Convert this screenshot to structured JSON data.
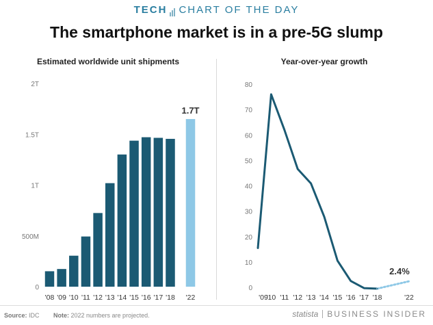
{
  "header": {
    "tech": "TECH",
    "kicker": "CHART OF THE DAY",
    "headline": "The smartphone market is in a pre-5G slump"
  },
  "footer": {
    "source_label": "Source:",
    "source_value": "IDC",
    "note_label": "Note:",
    "note_value": "2022 numbers are projected.",
    "logo_statista": "statista",
    "logo_bi": "BUSINESS INSIDER"
  },
  "colors": {
    "bar": "#1b5a73",
    "projected": "#8ec8e6",
    "line": "#1b5a73",
    "brand": "#2a7ea0"
  },
  "chart_data": [
    {
      "type": "bar",
      "title": "Estimated worldwide unit shipments",
      "categories": [
        "'08",
        "'09",
        "'10",
        "'11",
        "'12",
        "'13",
        "'14",
        "'15",
        "'16",
        "'17",
        "'18",
        "'22"
      ],
      "values": [
        0.152,
        0.174,
        0.305,
        0.494,
        0.725,
        1.019,
        1.301,
        1.437,
        1.471,
        1.465,
        1.455,
        1.65
      ],
      "projected": [
        false,
        false,
        false,
        false,
        false,
        false,
        false,
        false,
        false,
        false,
        false,
        true
      ],
      "ylim": [
        0,
        2
      ],
      "yticks": [
        {
          "value": 0,
          "label": "0"
        },
        {
          "value": 0.5,
          "label": "500M"
        },
        {
          "value": 1,
          "label": "1T"
        },
        {
          "value": 1.5,
          "label": "1.5T"
        },
        {
          "value": 2,
          "label": "2T"
        }
      ],
      "data_labels": [
        {
          "index": 11,
          "text": "1.7T"
        }
      ],
      "grid": false
    },
    {
      "type": "line",
      "title": "Year-over-year growth",
      "x": [
        "'09",
        "'10",
        "'11",
        "'12",
        "'13",
        "'14",
        "'15",
        "'16",
        "'17",
        "'18",
        "'22"
      ],
      "values": [
        15.5,
        76,
        62,
        46.6,
        40.9,
        27.8,
        10.5,
        2.5,
        -0.3,
        -0.5,
        2.4
      ],
      "projected_from_index": 9,
      "ylim": [
        0,
        80
      ],
      "yticks": [
        0,
        10,
        20,
        30,
        40,
        50,
        60,
        70,
        80
      ],
      "data_labels": [
        {
          "index": 10,
          "text": "2.4%"
        }
      ],
      "grid": false
    }
  ]
}
